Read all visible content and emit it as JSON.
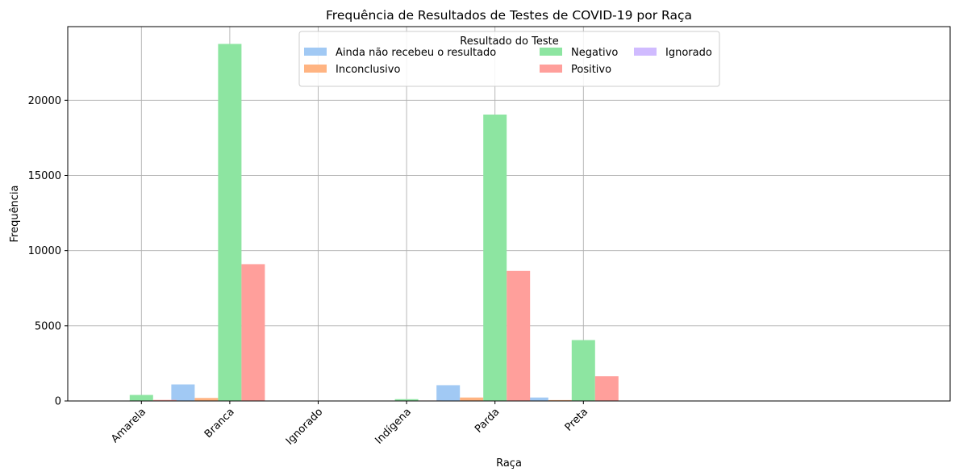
{
  "chart_data": {
    "type": "bar",
    "title": "Frequência de Resultados de Testes de COVID-19 por Raça",
    "xlabel": "Raça",
    "ylabel": "Frequência",
    "categories": [
      "Amarela",
      "Branca",
      "Ignorado",
      "Indígena",
      "Parda",
      "Preta"
    ],
    "ylim": [
      0,
      24900
    ],
    "yticks": [
      0,
      5000,
      10000,
      15000,
      20000
    ],
    "grid": true,
    "legend": {
      "title": "Resultado do Teste",
      "position": "top-center",
      "columns": 3
    },
    "series": [
      {
        "name": "Ainda não recebeu o resultado",
        "color": "#a1c9f4",
        "values": [
          20,
          1100,
          0,
          10,
          1050,
          230
        ]
      },
      {
        "name": "Inconclusivo",
        "color": "#ffb482",
        "values": [
          10,
          200,
          0,
          5,
          230,
          60
        ]
      },
      {
        "name": "Negativo",
        "color": "#8de5a1",
        "values": [
          400,
          23750,
          0,
          120,
          19050,
          4050
        ]
      },
      {
        "name": "Positivo",
        "color": "#ff9f9b",
        "values": [
          70,
          9100,
          0,
          30,
          8650,
          1650
        ]
      },
      {
        "name": "Ignorado",
        "color": "#d0bbff",
        "values": [
          0,
          0,
          0,
          0,
          0,
          0
        ]
      }
    ]
  }
}
